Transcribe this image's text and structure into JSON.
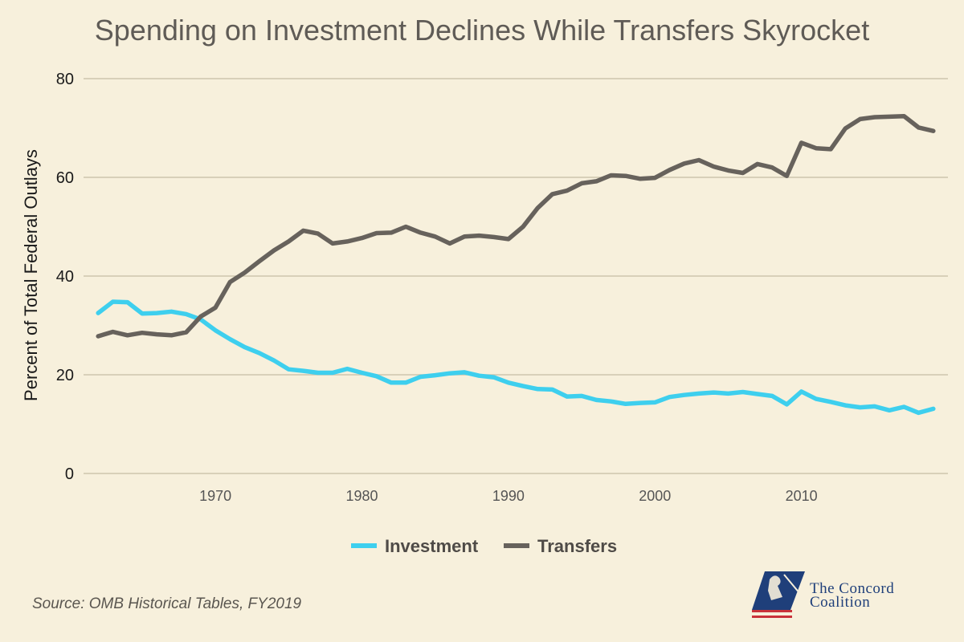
{
  "chart_data": {
    "type": "line",
    "title": "Spending on Investment Declines While Transfers Skyrocket",
    "xlabel": "",
    "ylabel": "Percent of Total Federal Outlays",
    "xlim": [
      1961,
      2020
    ],
    "ylim": [
      0,
      80
    ],
    "x_ticks": [
      1970,
      1980,
      1990,
      2000,
      2010
    ],
    "y_ticks": [
      0,
      20,
      40,
      60,
      80
    ],
    "grid": "horizontal",
    "legend_position": "bottom-center",
    "x": [
      1962,
      1963,
      1964,
      1965,
      1966,
      1967,
      1968,
      1969,
      1970,
      1971,
      1972,
      1973,
      1974,
      1975,
      1976,
      1977,
      1978,
      1979,
      1980,
      1981,
      1982,
      1983,
      1984,
      1985,
      1986,
      1987,
      1988,
      1989,
      1990,
      1991,
      1992,
      1993,
      1994,
      1995,
      1996,
      1997,
      1998,
      1999,
      2000,
      2001,
      2002,
      2003,
      2004,
      2005,
      2006,
      2007,
      2008,
      2009,
      2010,
      2011,
      2012,
      2013,
      2014,
      2015,
      2016,
      2017,
      2018,
      2019
    ],
    "series": [
      {
        "name": "Investment",
        "color": "#3ecfee",
        "values": [
          32.5,
          34.8,
          34.7,
          32.4,
          32.5,
          32.8,
          32.3,
          31.2,
          29.0,
          27.2,
          25.6,
          24.4,
          22.9,
          21.1,
          20.8,
          20.4,
          20.4,
          21.2,
          20.4,
          19.7,
          18.4,
          18.4,
          19.6,
          19.9,
          20.3,
          20.5,
          19.8,
          19.5,
          18.4,
          17.7,
          17.1,
          17.0,
          15.6,
          15.7,
          14.9,
          14.6,
          14.1,
          14.3,
          14.4,
          15.5,
          15.9,
          16.2,
          16.4,
          16.2,
          16.5,
          16.1,
          15.7,
          14.0,
          16.6,
          15.1,
          14.5,
          13.8,
          13.4,
          13.6,
          12.8,
          13.5,
          12.3,
          13.1
        ]
      },
      {
        "name": "Transfers",
        "color": "#67625c",
        "values": [
          27.8,
          28.7,
          28.0,
          28.5,
          28.2,
          28.0,
          28.6,
          31.8,
          33.6,
          38.8,
          40.7,
          43.0,
          45.2,
          47.0,
          49.2,
          48.6,
          46.6,
          47.0,
          47.7,
          48.7,
          48.8,
          50.0,
          48.8,
          48.0,
          46.6,
          48.0,
          48.2,
          47.9,
          47.5,
          50.0,
          53.8,
          56.6,
          57.3,
          58.8,
          59.2,
          60.4,
          60.3,
          59.7,
          59.9,
          61.5,
          62.8,
          63.5,
          62.2,
          61.4,
          60.9,
          62.7,
          62.0,
          60.3,
          67.0,
          65.9,
          65.7,
          69.9,
          71.8,
          72.2,
          72.3,
          72.4,
          70.1,
          69.4
        ]
      }
    ]
  },
  "source": "Source: OMB Historical Tables, FY2019",
  "logo": {
    "name": "THE CONCORD COALITION",
    "line1": "The Concord",
    "line2": "Coalition",
    "color": "#1f3f7a",
    "stripe_color": "#c9323a"
  },
  "colors": {
    "background": "#f7f0dc",
    "gridline": "#cdc5ad",
    "title": "#5f5b56"
  }
}
